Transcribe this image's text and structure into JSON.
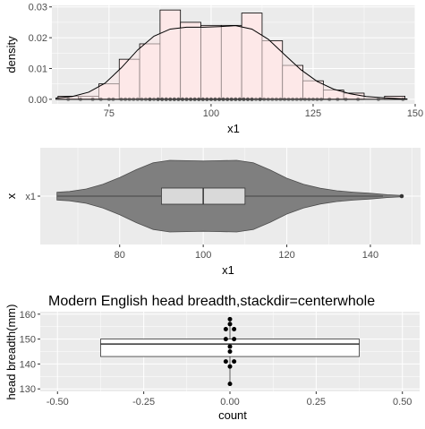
{
  "chart_data": [
    {
      "type": "histogram-density",
      "xlabel": "x1",
      "ylabel": "density",
      "xlim": [
        61,
        150
      ],
      "ylim": [
        -0.0015,
        0.0305
      ],
      "x_ticks": [
        75,
        100,
        125,
        150
      ],
      "x_tick_labels": [
        "75",
        "100",
        "125",
        "150"
      ],
      "y_ticks": [
        0.0,
        0.01,
        0.02,
        0.03
      ],
      "y_tick_labels": [
        "0.00",
        "0.01",
        "0.02",
        "0.03"
      ],
      "bin_width": 5,
      "bins": [
        {
          "x0": 62.5,
          "density": 0.001
        },
        {
          "x0": 67.5,
          "density": 0.001
        },
        {
          "x0": 72.5,
          "density": 0.005
        },
        {
          "x0": 77.5,
          "density": 0.013
        },
        {
          "x0": 82.5,
          "density": 0.018
        },
        {
          "x0": 87.5,
          "density": 0.029
        },
        {
          "x0": 92.5,
          "density": 0.025
        },
        {
          "x0": 97.5,
          "density": 0.024
        },
        {
          "x0": 102.5,
          "density": 0.024
        },
        {
          "x0": 107.5,
          "density": 0.028
        },
        {
          "x0": 112.5,
          "density": 0.019
        },
        {
          "x0": 117.5,
          "density": 0.011
        },
        {
          "x0": 122.5,
          "density": 0.006
        },
        {
          "x0": 127.5,
          "density": 0.003
        },
        {
          "x0": 132.5,
          "density": 0.002
        },
        {
          "x0": 137.5,
          "density": 0.0
        },
        {
          "x0": 142.5,
          "density": 0.001
        }
      ],
      "density_curve": {
        "x": [
          62,
          66,
          70,
          74,
          78,
          82,
          86,
          90,
          94,
          98,
          102,
          106,
          110,
          114,
          118,
          122,
          126,
          130,
          134,
          138,
          142,
          146,
          148
        ],
        "y": [
          0.0004,
          0.0009,
          0.0023,
          0.0052,
          0.0102,
          0.016,
          0.0205,
          0.0228,
          0.0234,
          0.0234,
          0.0236,
          0.0239,
          0.0228,
          0.0195,
          0.0145,
          0.0096,
          0.0058,
          0.0033,
          0.0018,
          0.0009,
          0.0005,
          0.0002,
          0.0001
        ]
      },
      "rug_points": [
        65,
        68,
        71,
        73,
        75,
        76,
        78,
        79,
        80,
        81,
        82,
        83,
        84,
        85,
        85,
        86,
        87,
        87,
        88,
        88,
        89,
        89,
        90,
        90,
        91,
        91,
        92,
        92,
        93,
        93,
        94,
        94,
        95,
        95,
        96,
        96,
        97,
        97,
        98,
        98,
        99,
        99,
        100,
        100,
        101,
        101,
        102,
        102,
        103,
        103,
        104,
        104,
        105,
        105,
        106,
        106,
        107,
        107,
        108,
        108,
        109,
        109,
        110,
        110,
        111,
        112,
        112,
        113,
        114,
        115,
        116,
        117,
        118,
        119,
        120,
        121,
        122,
        123,
        124,
        125,
        126,
        127,
        129,
        131,
        133,
        136,
        141,
        147
      ],
      "colors": {
        "bar_fill": "#fde8e8",
        "bar_stroke": "#000000",
        "points": "#333333",
        "panel": "#ebebeb",
        "grid": "#ffffff"
      }
    },
    {
      "type": "violin-boxplot",
      "xlabel": "x1",
      "ylabel": "x",
      "category_labels": [
        "x1"
      ],
      "xlim": [
        61,
        152
      ],
      "x_ticks": [
        80,
        100,
        120,
        140
      ],
      "x_tick_labels": [
        "80",
        "100",
        "120",
        "140"
      ],
      "box": {
        "q1": 90,
        "median": 100,
        "q3": 110,
        "whisker_low": 65,
        "whisker_high": 143,
        "outliers": [
          147.5
        ]
      },
      "violin_density": {
        "x": [
          65,
          68,
          72,
          76,
          80,
          84,
          88,
          92,
          96,
          100,
          104,
          108,
          112,
          116,
          120,
          124,
          128,
          132,
          136,
          140,
          144,
          147.5
        ],
        "w": [
          0.11,
          0.13,
          0.2,
          0.33,
          0.52,
          0.74,
          0.93,
          1.0,
          0.99,
          0.98,
          0.99,
          1.0,
          0.93,
          0.73,
          0.5,
          0.33,
          0.22,
          0.15,
          0.11,
          0.08,
          0.04,
          0.02
        ]
      },
      "colors": {
        "violin_fill": "#7f7f7f",
        "violin_stroke": "#4d4d4d",
        "box_fill": "#d9d9d9",
        "box_stroke": "#333333"
      }
    },
    {
      "type": "boxplot-dotplot",
      "title": "Modern English head breadth,stackdir=centerwhole",
      "xlabel": "count",
      "ylabel": "head breadth(mm)",
      "xlim": [
        -0.55,
        0.55
      ],
      "ylim": [
        129,
        161
      ],
      "x_ticks": [
        -0.5,
        -0.25,
        0.0,
        0.25,
        0.5
      ],
      "x_tick_labels": [
        "-0.50",
        "-0.25",
        "0.00",
        "0.25",
        "0.50"
      ],
      "y_ticks": [
        130,
        140,
        150,
        160
      ],
      "y_tick_labels": [
        "130",
        "140",
        "150",
        "160"
      ],
      "box": {
        "x_min": -0.375,
        "x_max": 0.375,
        "q1": 143,
        "median": 148,
        "q3": 150,
        "whisker_low": 132,
        "whisker_high": 158
      },
      "dots": [
        {
          "x": 0.0,
          "y": 158
        },
        {
          "x": 0.0,
          "y": 156
        },
        {
          "x": -0.012,
          "y": 154
        },
        {
          "x": 0.012,
          "y": 154
        },
        {
          "x": -0.012,
          "y": 150
        },
        {
          "x": 0.012,
          "y": 150
        },
        {
          "x": 0.0,
          "y": 147
        },
        {
          "x": 0.0,
          "y": 145
        },
        {
          "x": -0.012,
          "y": 141
        },
        {
          "x": 0.012,
          "y": 141
        },
        {
          "x": 0.0,
          "y": 139
        },
        {
          "x": 0.0,
          "y": 132
        }
      ],
      "colors": {
        "box_fill": "#ffffff",
        "box_stroke": "#333333",
        "dots": "#000000"
      }
    }
  ]
}
